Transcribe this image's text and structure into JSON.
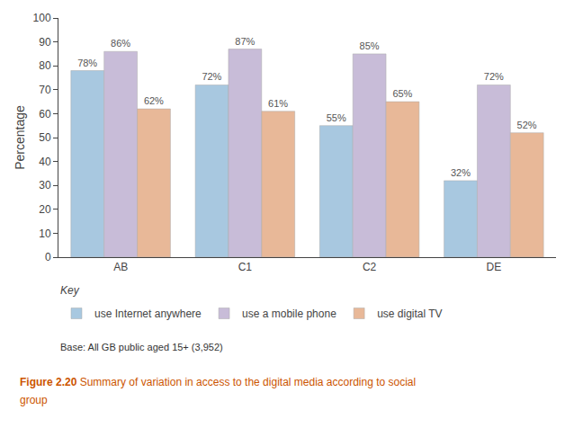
{
  "chart_data": {
    "type": "bar",
    "categories": [
      "AB",
      "C1",
      "C2",
      "DE"
    ],
    "series": [
      {
        "name": "use Internet anywhere",
        "color": "#a8c8e0",
        "values": [
          78,
          72,
          55,
          32
        ],
        "value_labels": [
          "78%",
          "72%",
          "55%",
          "32%"
        ]
      },
      {
        "name": "use a mobile phone",
        "color": "#c8bcd8",
        "values": [
          86,
          87,
          85,
          72
        ],
        "value_labels": [
          "86%",
          "87%",
          "85%",
          "72%"
        ]
      },
      {
        "name": "use digital TV",
        "color": "#e8b898",
        "values": [
          62,
          61,
          65,
          52
        ],
        "value_labels": [
          "62%",
          "61%",
          "65%",
          "52%"
        ]
      }
    ],
    "y_label": "Percentage",
    "ylim": [
      0,
      100
    ],
    "yticks": [
      0,
      10,
      20,
      30,
      40,
      50,
      60,
      70,
      80,
      90,
      100
    ],
    "grid": false,
    "data_labels": true,
    "legend": "bottom",
    "annotations": [
      "Key",
      "Base: All GB public aged 15+ (3,952)",
      "Figure 2.20",
      "Summary of variation in access to the digital media according to social",
      "group"
    ]
  }
}
